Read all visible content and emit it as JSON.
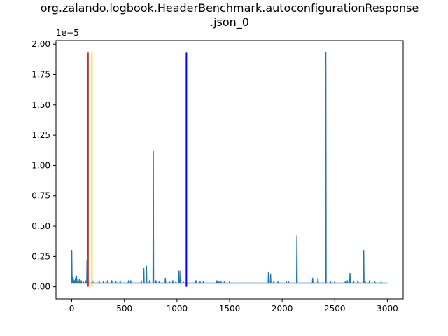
{
  "chart_data": {
    "type": "line",
    "title_lines": [
      "org.zalando.logbook.HeaderBenchmark.autoconfigurationResponse",
      ".json_0"
    ],
    "xlabel": "",
    "ylabel": "",
    "y_scale_label": "1e−5",
    "y_scale_factor": 1e-05,
    "xlim": [
      -150,
      3150
    ],
    "ylim": [
      -0.1,
      2.03
    ],
    "x_ticks": [
      0,
      500,
      1000,
      1500,
      2000,
      2500,
      3000
    ],
    "x_tick_labels": [
      "0",
      "500",
      "1000",
      "1500",
      "2000",
      "2500",
      "3000"
    ],
    "y_ticks": [
      0.0,
      0.25,
      0.5,
      0.75,
      1.0,
      1.25,
      1.5,
      1.75,
      2.0
    ],
    "y_tick_labels": [
      "0.00",
      "0.25",
      "0.50",
      "0.75",
      "1.00",
      "1.25",
      "1.50",
      "1.75",
      "2.00"
    ],
    "baseline": 0.03,
    "series": [
      {
        "color": "#1f77b4",
        "x_range": [
          0,
          3000
        ],
        "spikes": [
          [
            0,
            0.3
          ],
          [
            5,
            0.08
          ],
          [
            15,
            0.06
          ],
          [
            25,
            0.05
          ],
          [
            35,
            0.07
          ],
          [
            45,
            0.09
          ],
          [
            60,
            0.06
          ],
          [
            75,
            0.06
          ],
          [
            90,
            0.05
          ],
          [
            110,
            0.04
          ],
          [
            130,
            0.05
          ],
          [
            145,
            0.22
          ],
          [
            155,
            0.04
          ],
          [
            200,
            0.04
          ],
          [
            260,
            0.05
          ],
          [
            300,
            0.04
          ],
          [
            340,
            0.05
          ],
          [
            380,
            0.05
          ],
          [
            420,
            0.04
          ],
          [
            460,
            0.05
          ],
          [
            540,
            0.05
          ],
          [
            560,
            0.05
          ],
          [
            660,
            0.05
          ],
          [
            685,
            0.15
          ],
          [
            710,
            0.17
          ],
          [
            740,
            0.05
          ],
          [
            775,
            1.12
          ],
          [
            800,
            0.05
          ],
          [
            830,
            0.04
          ],
          [
            890,
            0.07
          ],
          [
            930,
            0.04
          ],
          [
            960,
            0.05
          ],
          [
            990,
            0.04
          ],
          [
            1020,
            0.13
          ],
          [
            1035,
            0.13
          ],
          [
            1060,
            0.04
          ],
          [
            1180,
            0.05
          ],
          [
            1220,
            0.04
          ],
          [
            1250,
            0.04
          ],
          [
            1380,
            0.05
          ],
          [
            1400,
            0.04
          ],
          [
            1420,
            0.04
          ],
          [
            1450,
            0.04
          ],
          [
            1500,
            0.04
          ],
          [
            1870,
            0.12
          ],
          [
            1890,
            0.1
          ],
          [
            1920,
            0.04
          ],
          [
            1960,
            0.04
          ],
          [
            2040,
            0.04
          ],
          [
            2060,
            0.04
          ],
          [
            2140,
            0.42
          ],
          [
            2290,
            0.07
          ],
          [
            2340,
            0.07
          ],
          [
            2415,
            1.93
          ],
          [
            2460,
            0.04
          ],
          [
            2500,
            0.04
          ],
          [
            2600,
            0.04
          ],
          [
            2620,
            0.05
          ],
          [
            2645,
            0.11
          ],
          [
            2680,
            0.04
          ],
          [
            2720,
            0.05
          ],
          [
            2775,
            0.3
          ],
          [
            2790,
            0.04
          ],
          [
            2830,
            0.05
          ],
          [
            2880,
            0.04
          ],
          [
            2940,
            0.04
          ]
        ]
      }
    ],
    "vertical_lines": [
      {
        "x": 155,
        "y_top": 1.93,
        "color": "#d62728"
      },
      {
        "x": 192,
        "y_top": 1.93,
        "color": "#ffd700"
      },
      {
        "x": 1090,
        "y_top": 1.93,
        "color": "#0000ff"
      }
    ]
  }
}
